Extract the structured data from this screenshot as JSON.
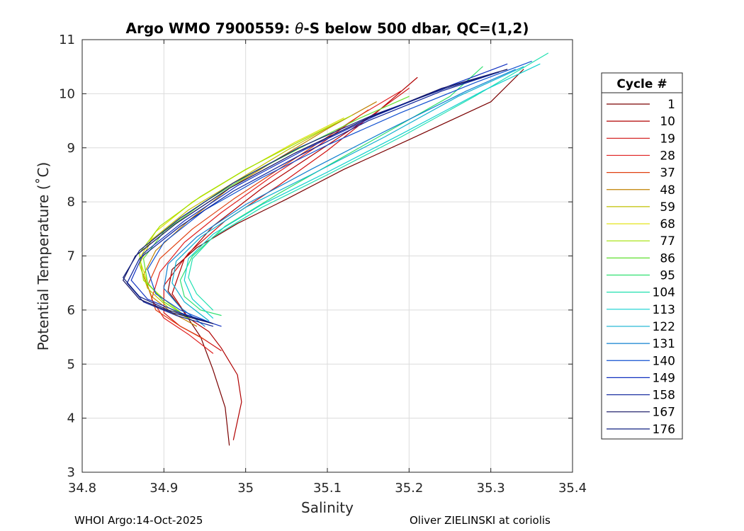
{
  "chart_data": {
    "type": "line",
    "title_prefix": "Argo WMO 7900559: ",
    "title_symbol": "θ",
    "title_suffix": "-S below 500 dbar,  QC=(1,2)",
    "xlabel": "Salinity",
    "ylabel": "Potential Temperature (˚C)",
    "xlim": [
      34.8,
      35.4
    ],
    "ylim": [
      3,
      11
    ],
    "xticks": [
      34.8,
      34.9,
      35,
      35.1,
      35.2,
      35.3,
      35.4
    ],
    "xtick_labels": [
      "34.8",
      "34.9",
      "35",
      "35.1",
      "35.2",
      "35.3",
      "35.4"
    ],
    "yticks": [
      3,
      4,
      5,
      6,
      7,
      8,
      9,
      10,
      11
    ],
    "ytick_labels": [
      "3",
      "4",
      "5",
      "6",
      "7",
      "8",
      "9",
      "10",
      "11"
    ],
    "grid": true,
    "legend_title": "Cycle #",
    "legend_position": "right",
    "series": [
      {
        "name": "1",
        "color": "#7a0000",
        "salinity": [
          34.98,
          34.975,
          34.96,
          34.945,
          34.925,
          34.905,
          34.91,
          34.94,
          34.99,
          35.05,
          35.12,
          35.2,
          35.3,
          35.34
        ],
        "theta": [
          3.5,
          4.2,
          4.9,
          5.5,
          5.95,
          6.35,
          6.75,
          7.15,
          7.6,
          8.05,
          8.6,
          9.15,
          9.85,
          10.45
        ]
      },
      {
        "name": "10",
        "color": "#b00000",
        "salinity": [
          34.985,
          34.995,
          34.99,
          34.97,
          34.955,
          34.93,
          34.91,
          34.925,
          34.96,
          35.02,
          35.09,
          35.16,
          35.21
        ],
        "theta": [
          3.6,
          4.3,
          4.8,
          5.3,
          5.6,
          5.85,
          6.3,
          6.95,
          7.55,
          8.25,
          8.95,
          9.65,
          10.3
        ]
      },
      {
        "name": "19",
        "color": "#d01010",
        "salinity": [
          34.97,
          34.945,
          34.92,
          34.9,
          34.9,
          34.93,
          34.975,
          35.04,
          35.1,
          35.15,
          35.2
        ],
        "theta": [
          5.25,
          5.5,
          5.7,
          5.95,
          6.45,
          7.05,
          7.65,
          8.3,
          8.95,
          9.55,
          10.1
        ]
      },
      {
        "name": "28",
        "color": "#e02020",
        "salinity": [
          34.96,
          34.93,
          34.9,
          34.885,
          34.895,
          34.925,
          34.97,
          35.03,
          35.09,
          35.14,
          35.19
        ],
        "theta": [
          5.2,
          5.55,
          5.85,
          6.2,
          6.7,
          7.25,
          7.8,
          8.45,
          9.05,
          9.6,
          10.05
        ]
      },
      {
        "name": "37",
        "color": "#e04010",
        "salinity": [
          34.95,
          34.92,
          34.89,
          34.88,
          34.895,
          34.935,
          34.985,
          35.045,
          35.1,
          35.15
        ],
        "theta": [
          5.45,
          5.7,
          6.0,
          6.45,
          6.95,
          7.5,
          8.05,
          8.65,
          9.2,
          9.7
        ]
      },
      {
        "name": "48",
        "color": "#c08000",
        "salinity": [
          34.94,
          34.91,
          34.885,
          34.875,
          34.89,
          34.93,
          34.98,
          35.04,
          35.1,
          35.16
        ],
        "theta": [
          5.7,
          5.95,
          6.25,
          6.65,
          7.1,
          7.65,
          8.25,
          8.8,
          9.35,
          9.85
        ]
      },
      {
        "name": "59",
        "color": "#c0c000",
        "salinity": [
          34.935,
          34.905,
          34.88,
          34.87,
          34.885,
          34.93,
          34.99,
          35.05,
          35.11
        ],
        "theta": [
          5.8,
          6.05,
          6.4,
          6.85,
          7.3,
          7.85,
          8.4,
          8.95,
          9.45
        ]
      },
      {
        "name": "68",
        "color": "#e0e000",
        "salinity": [
          34.93,
          34.9,
          34.88,
          34.87,
          34.89,
          34.935,
          34.995,
          35.06,
          35.12
        ],
        "theta": [
          5.85,
          6.15,
          6.5,
          6.95,
          7.45,
          8.0,
          8.55,
          9.1,
          9.55
        ]
      },
      {
        "name": "77",
        "color": "#a0e000",
        "salinity": [
          34.925,
          34.9,
          34.875,
          34.87,
          34.895,
          34.945,
          35.0,
          35.07,
          35.13
        ],
        "theta": [
          5.9,
          6.2,
          6.55,
          7.05,
          7.55,
          8.1,
          8.6,
          9.15,
          9.6
        ]
      },
      {
        "name": "86",
        "color": "#60e030",
        "salinity": [
          34.93,
          34.9,
          34.88,
          34.875,
          34.9,
          34.95,
          35.01,
          35.08,
          35.14,
          35.2
        ],
        "theta": [
          5.85,
          6.15,
          6.5,
          6.95,
          7.45,
          8.0,
          8.55,
          9.1,
          9.55,
          9.95
        ]
      },
      {
        "name": "95",
        "color": "#30e070",
        "salinity": [
          34.97,
          34.945,
          34.925,
          34.92,
          34.935,
          34.975,
          35.04,
          35.11,
          35.18,
          35.25,
          35.29
        ],
        "theta": [
          5.9,
          6.0,
          6.25,
          6.55,
          7.0,
          7.55,
          8.15,
          8.75,
          9.35,
          9.95,
          10.5
        ]
      },
      {
        "name": "104",
        "color": "#20e0b0",
        "salinity": [
          34.96,
          34.94,
          34.93,
          34.935,
          34.96,
          35.02,
          35.1,
          35.19,
          35.28,
          35.37
        ],
        "theta": [
          6.0,
          6.3,
          6.6,
          6.95,
          7.35,
          7.9,
          8.5,
          9.2,
          9.95,
          10.75
        ]
      },
      {
        "name": "113",
        "color": "#10d0d0",
        "salinity": [
          34.96,
          34.935,
          34.925,
          34.93,
          34.96,
          35.02,
          35.1,
          35.19,
          35.29,
          35.36
        ],
        "theta": [
          5.85,
          6.2,
          6.55,
          6.95,
          7.4,
          7.95,
          8.55,
          9.25,
          10.05,
          10.55
        ]
      },
      {
        "name": "122",
        "color": "#10b0d0",
        "salinity": [
          34.955,
          34.925,
          34.91,
          34.915,
          34.945,
          35.0,
          35.08,
          35.17,
          35.26,
          35.34
        ],
        "theta": [
          5.8,
          6.15,
          6.5,
          6.9,
          7.35,
          7.9,
          8.5,
          9.2,
          9.95,
          10.5
        ]
      },
      {
        "name": "131",
        "color": "#1080d0",
        "salinity": [
          34.95,
          34.92,
          34.9,
          34.905,
          34.94,
          35.0,
          35.08,
          35.17,
          35.27,
          35.33
        ],
        "theta": [
          5.7,
          6.05,
          6.4,
          6.85,
          7.35,
          7.95,
          8.6,
          9.3,
          10.05,
          10.45
        ]
      },
      {
        "name": "140",
        "color": "#1050d0",
        "salinity": [
          34.96,
          34.92,
          34.89,
          34.88,
          34.9,
          34.95,
          35.02,
          35.1,
          35.19,
          35.28,
          35.35
        ],
        "theta": [
          5.75,
          6.0,
          6.3,
          6.75,
          7.25,
          7.85,
          8.45,
          9.05,
          9.65,
          10.2,
          10.6
        ]
      },
      {
        "name": "149",
        "color": "#1030c0",
        "salinity": [
          34.97,
          34.92,
          34.88,
          34.86,
          34.875,
          34.925,
          34.99,
          35.07,
          35.16,
          35.25,
          35.32
        ],
        "theta": [
          5.7,
          5.95,
          6.2,
          6.55,
          7.05,
          7.65,
          8.3,
          8.95,
          9.6,
          10.15,
          10.55
        ]
      },
      {
        "name": "158",
        "color": "#0a209a",
        "salinity": [
          34.96,
          34.915,
          34.875,
          34.855,
          34.87,
          34.92,
          34.985,
          35.065,
          35.15,
          35.24,
          35.31
        ],
        "theta": [
          5.7,
          5.9,
          6.15,
          6.5,
          6.95,
          7.55,
          8.2,
          8.85,
          9.5,
          10.05,
          10.4
        ]
      },
      {
        "name": "167",
        "color": "#101060",
        "salinity": [
          34.96,
          34.91,
          34.87,
          34.85,
          34.865,
          34.915,
          34.98,
          35.06,
          35.15,
          35.24,
          35.32
        ],
        "theta": [
          5.75,
          5.95,
          6.2,
          6.55,
          7.0,
          7.6,
          8.25,
          8.9,
          9.55,
          10.1,
          10.45
        ]
      },
      {
        "name": "176",
        "color": "#102080",
        "salinity": [
          34.95,
          34.905,
          34.87,
          34.85,
          34.87,
          34.92,
          34.985,
          35.065,
          35.155,
          35.245,
          35.31
        ],
        "theta": [
          5.8,
          6.0,
          6.25,
          6.6,
          7.1,
          7.7,
          8.35,
          9.0,
          9.6,
          10.1,
          10.4
        ]
      }
    ]
  },
  "footer": {
    "left": "WHOI Argo:14-Oct-2025",
    "right": "Oliver ZIELINSKI at coriolis"
  }
}
